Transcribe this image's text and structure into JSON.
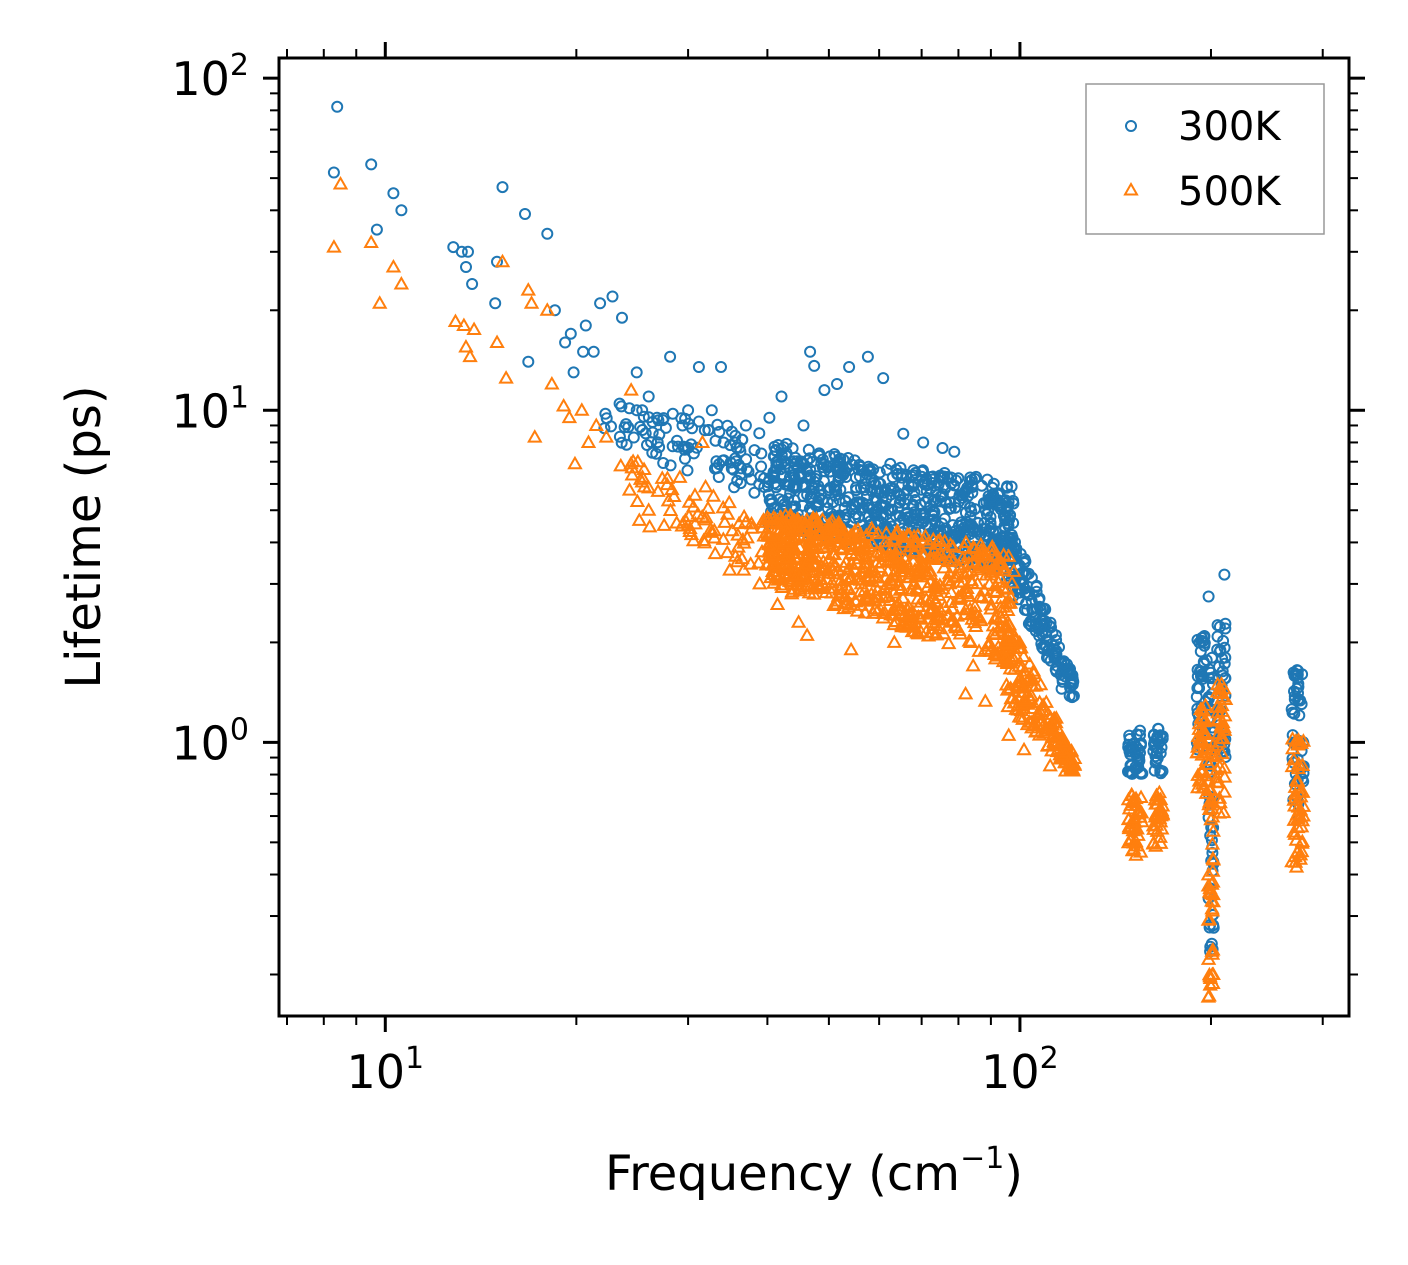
{
  "chart_data": {
    "type": "scatter",
    "title": "",
    "xlabel": "Frequency (cm",
    "xlabel_sup": "−1",
    "xlabel_end": ")",
    "ylabel": "Lifetime (ps)",
    "xscale": "log",
    "yscale": "log",
    "xlim": [
      6.8,
      330
    ],
    "ylim": [
      0.15,
      115
    ],
    "x_ticks": [
      {
        "value": 10,
        "base": "10",
        "exp": "1"
      },
      {
        "value": 100,
        "base": "10",
        "exp": "2"
      }
    ],
    "y_ticks": [
      {
        "value": 1,
        "base": "10",
        "exp": "0"
      },
      {
        "value": 10,
        "base": "10",
        "exp": "1"
      },
      {
        "value": 100,
        "base": "10",
        "exp": "2"
      }
    ],
    "legend_position": "top-right",
    "series": [
      {
        "name": "300K",
        "marker": "circle",
        "color": "#1f77b4",
        "points": [
          [
            8.3,
            52
          ],
          [
            8.4,
            82
          ],
          [
            9.5,
            55
          ],
          [
            9.7,
            35
          ],
          [
            10.3,
            45
          ],
          [
            10.6,
            40
          ],
          [
            12.8,
            31
          ],
          [
            13.2,
            30
          ],
          [
            13.4,
            27
          ],
          [
            13.5,
            30
          ],
          [
            13.7,
            24
          ],
          [
            14.9,
            21
          ],
          [
            15.0,
            28
          ],
          [
            15.3,
            47
          ],
          [
            16.6,
            39
          ],
          [
            16.8,
            14
          ],
          [
            18.0,
            34
          ],
          [
            18.5,
            20
          ],
          [
            19.2,
            16
          ],
          [
            19.6,
            17
          ],
          [
            19.8,
            13
          ],
          [
            20.5,
            15
          ],
          [
            20.7,
            18
          ],
          [
            21.3,
            15
          ],
          [
            21.8,
            21
          ],
          [
            22.8,
            22
          ],
          [
            23.6,
            19
          ],
          [
            24.9,
            13
          ],
          [
            25.4,
            10
          ],
          [
            26.0,
            11
          ],
          [
            26.8,
            9.5
          ],
          [
            28.1,
            14.5
          ],
          [
            29.4,
            9
          ],
          [
            30.0,
            10
          ],
          [
            31.2,
            13.5
          ],
          [
            32.7,
            10
          ],
          [
            33.8,
            13.5
          ],
          [
            35.6,
            8
          ],
          [
            37.0,
            9
          ],
          [
            40.3,
            9.5
          ],
          [
            42.1,
            11
          ],
          [
            45.6,
            9
          ],
          [
            46.7,
            15
          ],
          [
            47.4,
            13.6
          ],
          [
            49.2,
            11.5
          ],
          [
            51.5,
            12
          ],
          [
            53.8,
            13.5
          ],
          [
            57.6,
            14.5
          ],
          [
            60.9,
            12.5
          ],
          [
            65.5,
            8.5
          ],
          [
            70.4,
            8
          ],
          [
            75.5,
            7.7
          ],
          [
            78.8,
            7.5
          ],
          [
            85.3,
            6.3
          ],
          [
            90.4,
            5.5
          ],
          [
            98.0,
            3.6
          ],
          [
            100.2,
            3.1
          ],
          [
            104.6,
            2.3
          ],
          [
            110.3,
            1.8
          ],
          [
            116.3,
            1.45
          ],
          [
            119.8,
            1.38
          ],
          [
            198.3,
            2.75
          ],
          [
            210.0,
            3.2
          ],
          [
            273.4,
            1.65
          ]
        ],
        "bands": [
          {
            "x_from": 22,
            "x_to": 45,
            "y_top_from": 11,
            "y_top_to": 8,
            "y_bot_from": 8,
            "y_bot_to": 5,
            "n": 110
          },
          {
            "x_from": 40,
            "x_to": 98,
            "y_top_from": 8,
            "y_top_to": 6,
            "y_bot_from": 4.5,
            "y_bot_to": 3.2,
            "n": 700
          },
          {
            "x_from": 95,
            "x_to": 122,
            "y_top_from": 5,
            "y_top_to": 1.55,
            "y_bot_from": 3,
            "y_bot_to": 1.3,
            "n": 160
          },
          {
            "x_from": 148,
            "x_to": 156,
            "y_top_from": 1.1,
            "y_top_to": 1.1,
            "y_bot_from": 0.78,
            "y_bot_to": 0.78,
            "n": 40
          },
          {
            "x_from": 162,
            "x_to": 168,
            "y_top_from": 1.1,
            "y_top_to": 1.1,
            "y_bot_from": 0.8,
            "y_bot_to": 0.8,
            "n": 30
          },
          {
            "x_from": 190,
            "x_to": 197,
            "y_top_from": 2.1,
            "y_top_to": 2.1,
            "y_bot_from": 0.95,
            "y_bot_to": 0.95,
            "n": 40
          },
          {
            "x_from": 198,
            "x_to": 202,
            "y_top_from": 1.8,
            "y_top_to": 1.8,
            "y_bot_from": 0.22,
            "y_bot_to": 0.22,
            "n": 50
          },
          {
            "x_from": 204,
            "x_to": 211,
            "y_top_from": 2.3,
            "y_top_to": 2.3,
            "y_bot_from": 0.9,
            "y_bot_to": 0.9,
            "n": 40
          },
          {
            "x_from": 268,
            "x_to": 280,
            "y_top_from": 1.65,
            "y_top_to": 1.65,
            "y_bot_from": 0.6,
            "y_bot_to": 0.6,
            "n": 50
          }
        ]
      },
      {
        "name": "500K",
        "marker": "triangle",
        "color": "#ff7f0e",
        "points": [
          [
            8.3,
            31
          ],
          [
            8.5,
            48
          ],
          [
            9.5,
            32
          ],
          [
            9.8,
            21
          ],
          [
            10.3,
            27
          ],
          [
            10.6,
            24
          ],
          [
            12.9,
            18.5
          ],
          [
            13.3,
            18
          ],
          [
            13.4,
            15.5
          ],
          [
            13.6,
            14.5
          ],
          [
            13.8,
            17.5
          ],
          [
            15.0,
            16
          ],
          [
            15.3,
            28
          ],
          [
            15.5,
            12.5
          ],
          [
            16.8,
            23
          ],
          [
            17.0,
            21
          ],
          [
            17.2,
            8.3
          ],
          [
            18.0,
            20
          ],
          [
            18.3,
            12
          ],
          [
            19.1,
            10.3
          ],
          [
            19.5,
            9.5
          ],
          [
            19.9,
            6.9
          ],
          [
            20.4,
            10
          ],
          [
            20.9,
            8
          ],
          [
            21.5,
            9
          ],
          [
            22.3,
            8.3
          ],
          [
            23.5,
            6.8
          ],
          [
            24.4,
            11.5
          ],
          [
            25.0,
            7
          ],
          [
            26.0,
            5
          ],
          [
            26.9,
            5.7
          ],
          [
            27.5,
            4.5
          ],
          [
            28.5,
            5.5
          ],
          [
            30.0,
            4.5
          ],
          [
            31.6,
            8
          ],
          [
            33.1,
            3.7
          ],
          [
            34.9,
            3.3
          ],
          [
            36.7,
            3.3
          ],
          [
            38.9,
            3
          ],
          [
            41.5,
            2.6
          ],
          [
            43.7,
            2.8
          ],
          [
            44.8,
            2.3
          ],
          [
            46.2,
            2.1
          ],
          [
            47.4,
            3.4
          ],
          [
            50.3,
            4
          ],
          [
            54.2,
            1.9
          ],
          [
            58.6,
            3.3
          ],
          [
            63.4,
            2
          ],
          [
            66.6,
            2.5
          ],
          [
            72.7,
            2.5
          ],
          [
            76.9,
            2.4
          ],
          [
            82.1,
            1.4
          ],
          [
            84.4,
            1.7
          ],
          [
            88.2,
            1.33
          ],
          [
            96.0,
            1.05
          ],
          [
            101.5,
            0.95
          ],
          [
            111.6,
            0.85
          ],
          [
            118.0,
            0.82
          ],
          [
            121.4,
            0.82
          ]
        ],
        "bands": [
          {
            "x_from": 24,
            "x_to": 45,
            "y_top_from": 7.5,
            "y_top_to": 4.5,
            "y_bot_from": 4.5,
            "y_bot_to": 3,
            "n": 110
          },
          {
            "x_from": 40,
            "x_to": 98,
            "y_top_from": 5,
            "y_top_to": 3.8,
            "y_bot_from": 3,
            "y_bot_to": 1.7,
            "n": 700
          },
          {
            "x_from": 95,
            "x_to": 122,
            "y_top_from": 2.5,
            "y_top_to": 0.9,
            "y_bot_from": 1.3,
            "y_bot_to": 0.8,
            "n": 160
          },
          {
            "x_from": 148,
            "x_to": 156,
            "y_top_from": 0.7,
            "y_top_to": 0.7,
            "y_bot_from": 0.45,
            "y_bot_to": 0.45,
            "n": 40
          },
          {
            "x_from": 162,
            "x_to": 168,
            "y_top_from": 0.72,
            "y_top_to": 0.72,
            "y_bot_from": 0.48,
            "y_bot_to": 0.48,
            "n": 30
          },
          {
            "x_from": 190,
            "x_to": 197,
            "y_top_from": 1.3,
            "y_top_to": 1.3,
            "y_bot_from": 0.7,
            "y_bot_to": 0.7,
            "n": 40
          },
          {
            "x_from": 198,
            "x_to": 202,
            "y_top_from": 1.1,
            "y_top_to": 1.1,
            "y_bot_from": 0.17,
            "y_bot_to": 0.17,
            "n": 50
          },
          {
            "x_from": 204,
            "x_to": 211,
            "y_top_from": 1.5,
            "y_top_to": 1.5,
            "y_bot_from": 0.6,
            "y_bot_to": 0.6,
            "n": 40
          },
          {
            "x_from": 268,
            "x_to": 280,
            "y_top_from": 1.05,
            "y_top_to": 1.05,
            "y_bot_from": 0.42,
            "y_bot_to": 0.42,
            "n": 50
          }
        ]
      }
    ]
  }
}
